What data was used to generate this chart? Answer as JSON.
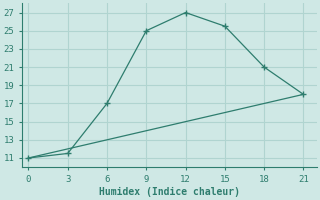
{
  "xlabel": "Humidex (Indice chaleur)",
  "line1_x": [
    0,
    3,
    6,
    9,
    12,
    15,
    18,
    21
  ],
  "line1_y": [
    11,
    11.5,
    17,
    25,
    27,
    25.5,
    21,
    18
  ],
  "line2_x": [
    0,
    21
  ],
  "line2_y": [
    11,
    18
  ],
  "line_color": "#2e7d6e",
  "bg_color": "#cfe8e5",
  "grid_color": "#b0d4d0",
  "text_color": "#2e7d6e",
  "xlim": [
    -0.5,
    22
  ],
  "ylim": [
    10,
    28
  ],
  "xticks": [
    0,
    3,
    6,
    9,
    12,
    15,
    18,
    21
  ],
  "yticks": [
    11,
    13,
    15,
    17,
    19,
    21,
    23,
    25,
    27
  ]
}
